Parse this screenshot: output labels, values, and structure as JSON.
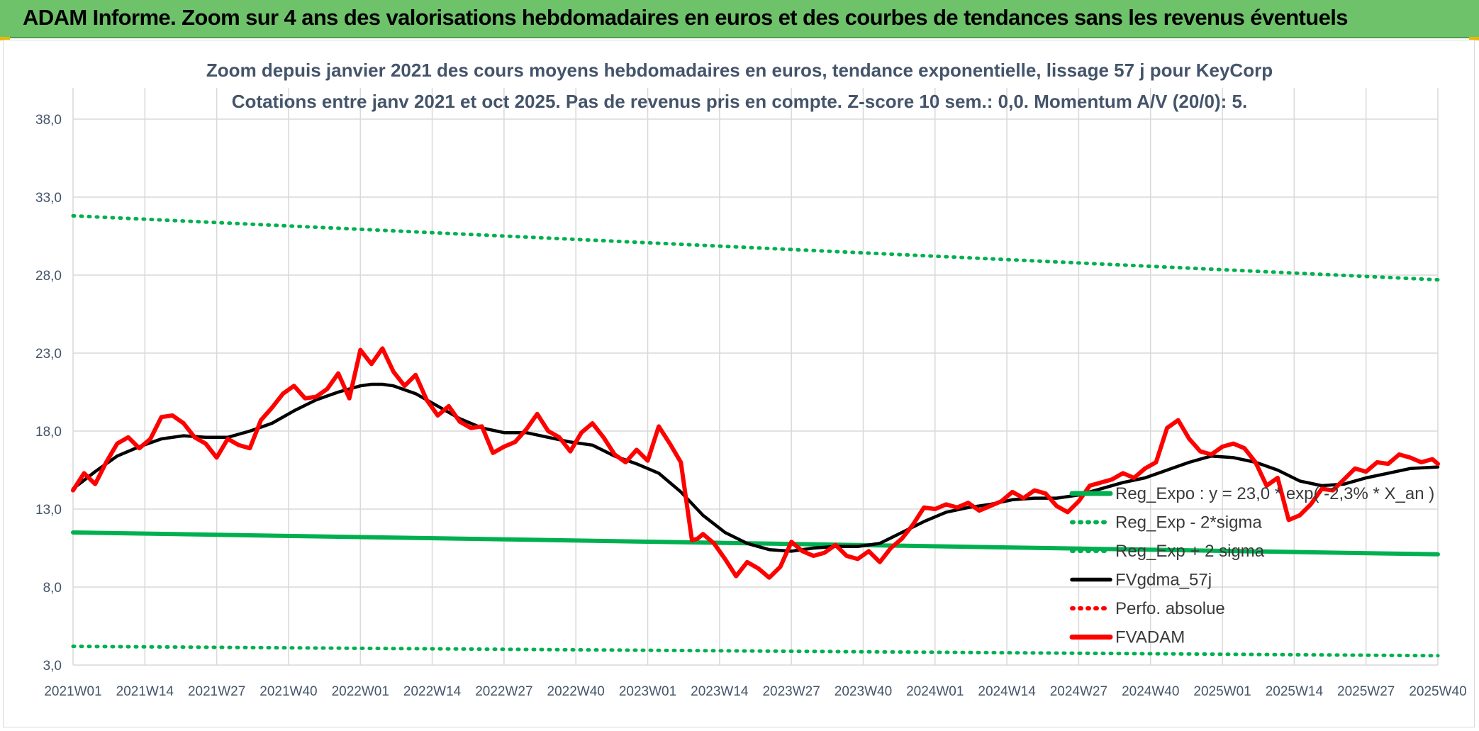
{
  "banner": {
    "title": "ADAM Informe. Zoom sur 4 ans des valorisations hebdomadaires en euros et des courbes de tendances sans les revenus éventuels"
  },
  "chart_data": {
    "type": "line",
    "title": "Zoom depuis janvier 2021 des cours moyens hebdomadaires en euros, tendance exponentielle, lissage 57 j pour KeyCorp",
    "subtitle": "Cotations entre janv 2021 et oct 2025. Pas de revenus pris en compte. Z-score 10 sem.: 0,0. Momentum A/V (20/0): 5.",
    "xlabel": "",
    "ylabel": "",
    "ylim": [
      3,
      40
    ],
    "yticks": [
      "3,0",
      "8,0",
      "13,0",
      "18,0",
      "23,0",
      "28,0",
      "33,0",
      "38,0"
    ],
    "ytick_values": [
      3,
      8,
      13,
      18,
      23,
      28,
      33,
      38
    ],
    "x_range": [
      0,
      247
    ],
    "xtick_labels": [
      "2021W01",
      "2021W14",
      "2021W27",
      "2021W40",
      "2022W01",
      "2022W14",
      "2022W27",
      "2022W40",
      "2023W01",
      "2023W14",
      "2023W27",
      "2023W40",
      "2024W01",
      "2024W14",
      "2024W27",
      "2024W40",
      "2025W01",
      "2025W14",
      "2025W27",
      "2025W40"
    ],
    "xtick_values": [
      0,
      13,
      26,
      39,
      52,
      65,
      78,
      91,
      104,
      117,
      130,
      143,
      156,
      169,
      182,
      195,
      208,
      221,
      234,
      247
    ],
    "grid": true,
    "legend_position": "lower-right",
    "series": [
      {
        "name": "Reg_Expo : y = 23,0 * exp( -2,3% * X_an )",
        "style": "solid-thick",
        "color": "#00b050",
        "x": [
          0,
          247
        ],
        "y": [
          11.5,
          10.1
        ]
      },
      {
        "name": "Reg_Exp - 2*sigma",
        "style": "dotted",
        "color": "#00b050",
        "x": [
          0,
          247
        ],
        "y": [
          4.2,
          3.6
        ]
      },
      {
        "name": "Reg_Exp + 2 sigma",
        "style": "dotted",
        "color": "#00b050",
        "x": [
          0,
          247
        ],
        "y": [
          31.8,
          27.7
        ]
      },
      {
        "name": "FVgdma_57j",
        "style": "solid",
        "color": "#000000",
        "x": [
          0,
          4,
          8,
          12,
          16,
          20,
          24,
          28,
          32,
          36,
          40,
          44,
          48,
          52,
          54,
          56,
          58,
          62,
          66,
          70,
          74,
          78,
          82,
          86,
          90,
          94,
          98,
          102,
          106,
          110,
          114,
          118,
          122,
          126,
          130,
          134,
          138,
          142,
          146,
          150,
          154,
          158,
          162,
          166,
          170,
          174,
          178,
          182,
          186,
          190,
          194,
          198,
          202,
          206,
          210,
          214,
          218,
          222,
          226,
          230,
          234,
          238,
          242,
          247
        ],
        "y": [
          14.3,
          15.4,
          16.4,
          17.0,
          17.5,
          17.7,
          17.6,
          17.6,
          18.0,
          18.5,
          19.3,
          20.0,
          20.5,
          20.9,
          21.0,
          21.0,
          20.9,
          20.4,
          19.6,
          18.8,
          18.2,
          17.9,
          17.9,
          17.6,
          17.3,
          17.1,
          16.4,
          15.9,
          15.3,
          14.1,
          12.6,
          11.5,
          10.8,
          10.4,
          10.3,
          10.5,
          10.6,
          10.6,
          10.8,
          11.5,
          12.2,
          12.8,
          13.1,
          13.3,
          13.6,
          13.7,
          13.7,
          13.9,
          14.3,
          14.7,
          15.0,
          15.5,
          16.0,
          16.4,
          16.3,
          16.0,
          15.5,
          14.8,
          14.5,
          14.6,
          15.0,
          15.3,
          15.6,
          15.7
        ]
      },
      {
        "name": "Perfo. absolue",
        "style": "dotted",
        "color": "#ff0000",
        "x": [],
        "y": []
      },
      {
        "name": "FVADAM",
        "style": "solid-thick",
        "color": "#ff0000",
        "x": [
          0,
          2,
          4,
          6,
          8,
          10,
          12,
          14,
          16,
          18,
          20,
          22,
          24,
          26,
          28,
          30,
          32,
          34,
          36,
          38,
          40,
          42,
          44,
          46,
          48,
          50,
          52,
          54,
          56,
          58,
          60,
          62,
          64,
          66,
          68,
          70,
          72,
          74,
          76,
          78,
          80,
          82,
          84,
          86,
          88,
          90,
          92,
          94,
          96,
          98,
          100,
          102,
          104,
          106,
          108,
          110,
          112,
          113,
          114,
          116,
          118,
          120,
          122,
          124,
          126,
          128,
          130,
          132,
          134,
          136,
          138,
          140,
          142,
          144,
          146,
          148,
          150,
          152,
          154,
          156,
          158,
          160,
          162,
          164,
          166,
          168,
          170,
          172,
          174,
          176,
          178,
          180,
          182,
          184,
          186,
          188,
          190,
          192,
          194,
          196,
          198,
          200,
          202,
          204,
          206,
          208,
          210,
          212,
          214,
          216,
          218,
          220,
          222,
          224,
          226,
          228,
          230,
          232,
          234,
          236,
          238,
          240,
          242,
          244,
          246,
          247
        ],
        "y": [
          14.2,
          15.3,
          14.6,
          16.0,
          17.2,
          17.6,
          16.9,
          17.5,
          18.9,
          19.0,
          18.5,
          17.6,
          17.2,
          16.3,
          17.5,
          17.1,
          16.9,
          18.7,
          19.5,
          20.4,
          20.9,
          20.1,
          20.2,
          20.7,
          21.7,
          20.1,
          23.2,
          22.3,
          23.3,
          21.8,
          20.9,
          21.6,
          20.0,
          19.0,
          19.6,
          18.6,
          18.2,
          18.3,
          16.6,
          17.0,
          17.3,
          18.1,
          19.1,
          18.0,
          17.6,
          16.7,
          17.9,
          18.5,
          17.6,
          16.5,
          16.0,
          16.8,
          16.1,
          18.3,
          17.2,
          16.0,
          11.0,
          11.1,
          11.4,
          10.8,
          9.8,
          8.7,
          9.6,
          9.2,
          8.6,
          9.3,
          10.9,
          10.3,
          10.0,
          10.2,
          10.7,
          10.0,
          9.8,
          10.3,
          9.6,
          10.5,
          11.1,
          12.0,
          13.1,
          13.0,
          13.3,
          13.1,
          13.4,
          12.9,
          13.2,
          13.5,
          14.1,
          13.7,
          14.2,
          14.0,
          13.2,
          12.8,
          13.5,
          14.5,
          14.7,
          14.9,
          15.3,
          15.0,
          15.6,
          16.0,
          18.2,
          18.7,
          17.5,
          16.7,
          16.5,
          17.0,
          17.2,
          16.9,
          16.0,
          14.5,
          15.0,
          12.3,
          12.6,
          13.3,
          14.3,
          14.2,
          14.9,
          15.6,
          15.4,
          16.0,
          15.9,
          16.5,
          16.3,
          16.0,
          16.2,
          15.9
        ]
      }
    ]
  }
}
